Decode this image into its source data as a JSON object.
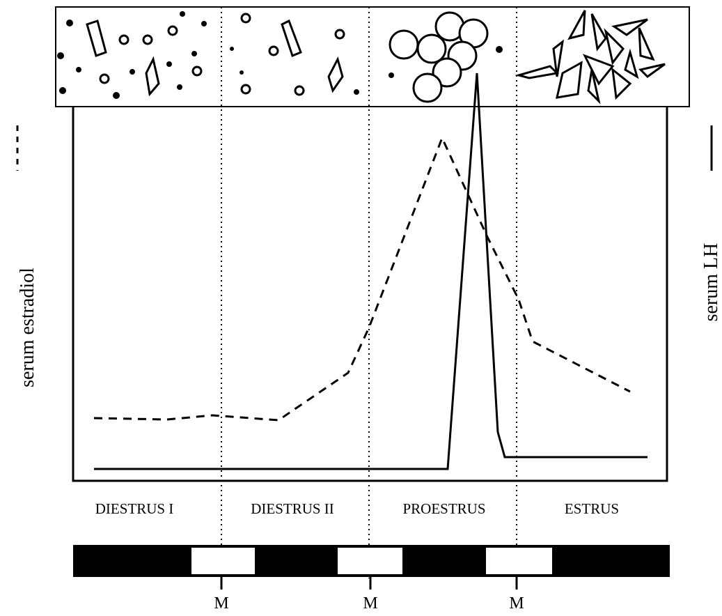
{
  "left_axis": {
    "label": "serum estradiol"
  },
  "right_axis": {
    "label": "serum LH"
  },
  "stages": [
    "DIESTRUS I",
    "DIESTRUS II",
    "PROESTRUS",
    "ESTRUS"
  ],
  "markers": [
    "M",
    "M",
    "M"
  ]
}
